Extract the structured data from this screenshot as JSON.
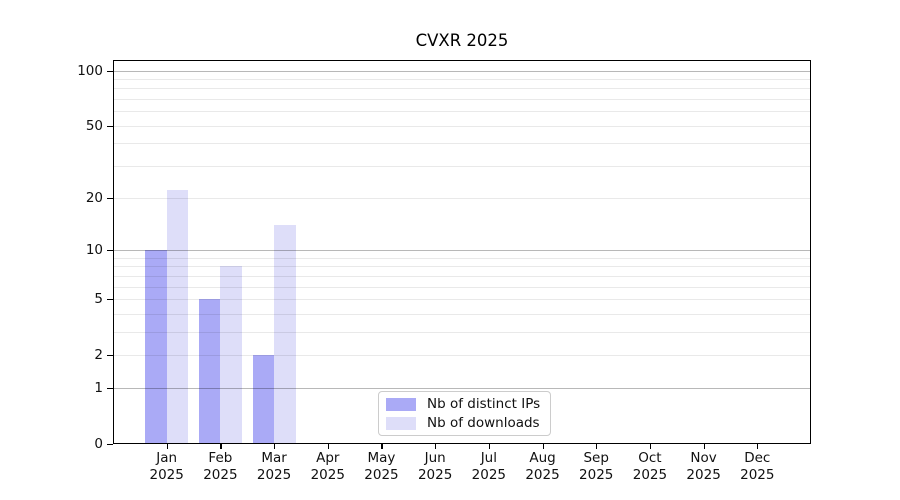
{
  "figure": {
    "background": "#ffffff",
    "axis_color": "#000000",
    "major_grid_color": "rgba(0,0,0,0.28)",
    "minor_grid_color": "rgba(0,0,0,0.085)"
  },
  "chart_data": {
    "type": "bar",
    "title": "CVXR 2025",
    "categories": [
      "Jan 2025",
      "Feb 2025",
      "Mar 2025",
      "Apr 2025",
      "May 2025",
      "Jun 2025",
      "Jul 2025",
      "Aug 2025",
      "Sep 2025",
      "Oct 2025",
      "Nov 2025",
      "Dec 2025"
    ],
    "series": [
      {
        "key": "distinct-ips",
        "name": "Nb of distinct IPs",
        "color": "#aaaaf6",
        "values": [
          10,
          5,
          2,
          0,
          0,
          0,
          0,
          0,
          0,
          0,
          0,
          0
        ]
      },
      {
        "key": "downloads",
        "name": "Nb of downloads",
        "color": "#dedef9",
        "values": [
          22,
          8,
          14,
          0,
          0,
          0,
          0,
          0,
          0,
          0,
          0,
          0
        ]
      }
    ],
    "xlabel": "",
    "ylabel": "",
    "y_scale": "log1p",
    "y_axis_max": 114,
    "ylim": [
      0,
      114
    ],
    "y_tick_values": [
      100,
      50,
      20,
      10,
      5,
      2,
      1,
      0
    ],
    "y_tick_labels": [
      "100",
      "50",
      "20",
      "10",
      "5",
      "2",
      "1",
      "0"
    ],
    "y_major_gridlines": [
      1,
      10,
      100
    ],
    "y_minor_gridlines": [
      2,
      3,
      4,
      5,
      6,
      7,
      8,
      9,
      20,
      30,
      40,
      50,
      60,
      70,
      80,
      90
    ],
    "grid": "on",
    "legend_position": "lower-center"
  }
}
